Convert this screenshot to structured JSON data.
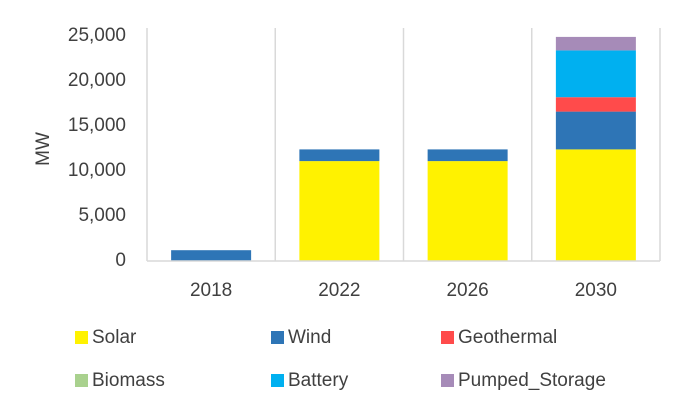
{
  "chart_data": {
    "type": "bar",
    "stacked": true,
    "categories": [
      "2018",
      "2022",
      "2026",
      "2030"
    ],
    "series": [
      {
        "name": "Solar",
        "color": "#FFF200",
        "values": [
          0,
          11100,
          11100,
          12400
        ]
      },
      {
        "name": "Wind",
        "color": "#2E75B6",
        "values": [
          1200,
          1300,
          1300,
          4200
        ]
      },
      {
        "name": "Geothermal",
        "color": "#FF4B4B",
        "values": [
          0,
          0,
          0,
          1600
        ]
      },
      {
        "name": "Biomass",
        "color": "#A9D18E",
        "values": [
          0,
          0,
          0,
          0
        ]
      },
      {
        "name": "Battery",
        "color": "#00B0F0",
        "values": [
          0,
          0,
          0,
          5200
        ]
      },
      {
        "name": "Pumped_Storage",
        "color": "#A68BB8",
        "values": [
          0,
          0,
          0,
          1500
        ]
      }
    ],
    "yticks": [
      "0",
      "5,000",
      "10,000",
      "15,000",
      "20,000",
      "25,000"
    ],
    "ylabel": "MW",
    "xlabel": "",
    "title": "",
    "ylim": [
      0,
      25000
    ],
    "grid": "vertical separators",
    "legend_position": "bottom"
  }
}
